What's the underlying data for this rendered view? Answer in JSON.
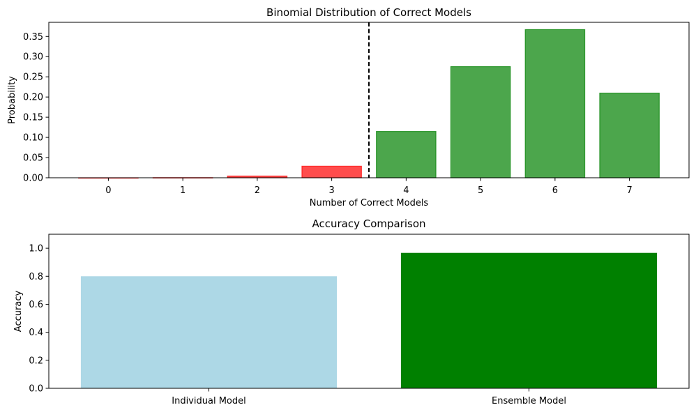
{
  "chart_data": [
    {
      "type": "bar",
      "title": "Binomial Distribution of Correct Models",
      "xlabel": "Number of Correct Models",
      "ylabel": "Probability",
      "categories": [
        "0",
        "1",
        "2",
        "3",
        "4",
        "5",
        "6",
        "7"
      ],
      "values": [
        1.28e-05,
        0.000358,
        0.0043,
        0.0287,
        0.1147,
        0.2753,
        0.367,
        0.2097
      ],
      "bar_colors": [
        "#ff0000",
        "#ff0000",
        "#ff0000",
        "#ff0000",
        "#008000",
        "#008000",
        "#008000",
        "#008000"
      ],
      "bar_opacity": 0.7,
      "threshold_line": {
        "x": 3.5,
        "style": "dashed",
        "color": "#000000"
      },
      "ylim": [
        0,
        0.385
      ],
      "yticks": [
        "0.00",
        "0.05",
        "0.10",
        "0.15",
        "0.20",
        "0.25",
        "0.30",
        "0.35"
      ],
      "ytick_values": [
        0,
        0.05,
        0.1,
        0.15,
        0.2,
        0.25,
        0.3,
        0.35
      ],
      "grid": false
    },
    {
      "type": "bar",
      "title": "Accuracy Comparison",
      "xlabel": "",
      "ylabel": "Accuracy",
      "categories": [
        "Individual Model",
        "Ensemble Model"
      ],
      "values": [
        0.8,
        0.967
      ],
      "bar_colors": [
        "#add8e6",
        "#008000"
      ],
      "ylim": [
        0,
        1.1
      ],
      "yticks": [
        "0.0",
        "0.2",
        "0.4",
        "0.6",
        "0.8",
        "1.0"
      ],
      "ytick_values": [
        0,
        0.2,
        0.4,
        0.6,
        0.8,
        1.0
      ],
      "grid": false
    }
  ]
}
